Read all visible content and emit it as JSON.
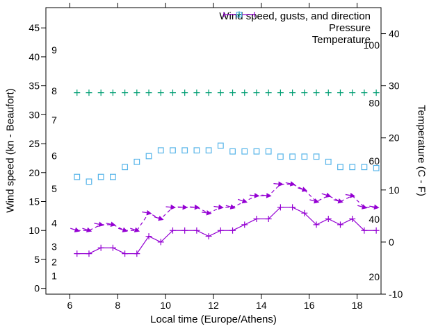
{
  "chart_data": {
    "type": "line",
    "title": "",
    "grid": false,
    "legend_position": "top-right-inside",
    "colors": {
      "wind": "#9400d3",
      "pressure": "#009e73",
      "temperature": "#56b4e9",
      "border": "#000000",
      "background": "#ffffff",
      "text": "#000000"
    },
    "legend": [
      {
        "label": "Wind speed, gusts, and direction",
        "marker": "errorbar-line",
        "color": "#9400d3"
      },
      {
        "label": "Pressure",
        "marker": "plus",
        "color": "#009e73"
      },
      {
        "label": "Temperature",
        "marker": "open-square",
        "color": "#56b4e9"
      }
    ],
    "x": {
      "title": "Local time (Europe/Athens)",
      "range": [
        5,
        19
      ],
      "ticks": [
        6,
        8,
        10,
        12,
        14,
        16,
        18
      ]
    },
    "y1": {
      "title": "Wind speed (kn - Beaufort)",
      "range": [
        -1,
        48.5
      ],
      "ticks": [
        0,
        5,
        10,
        15,
        20,
        25,
        30,
        35,
        40,
        45
      ],
      "inner_labels": {
        "name": "beaufort-scale",
        "values": [
          1,
          2,
          3,
          4,
          5,
          6,
          7,
          8,
          9
        ],
        "positions_kn": [
          2.2,
          4.6,
          7.2,
          11.3,
          17.2,
          22.9,
          29.1,
          34.1,
          41.2
        ]
      }
    },
    "y2": {
      "title": "Temperature (C - F)",
      "range": [
        -10,
        45
      ],
      "ticks": [
        -10,
        0,
        10,
        20,
        30,
        40
      ],
      "inner_labels": {
        "name": "fahrenheit-scale",
        "values": [
          20,
          40,
          60,
          80,
          100
        ],
        "positions_c": [
          -6.7,
          4.4,
          15.6,
          26.7,
          37.8
        ]
      }
    },
    "series": {
      "time_h": [
        6.3,
        6.8,
        7.3,
        7.8,
        8.3,
        8.8,
        9.3,
        9.8,
        10.3,
        10.8,
        11.3,
        11.8,
        12.3,
        12.8,
        13.3,
        13.8,
        14.3,
        14.8,
        15.3,
        15.8,
        16.3,
        16.8,
        17.3,
        17.8,
        18.3,
        18.8
      ],
      "wind_speed_kn": [
        6,
        6,
        7,
        7,
        6,
        6,
        9,
        8,
        10,
        10,
        10,
        9,
        10,
        10,
        11,
        12,
        12,
        14,
        14,
        13,
        11,
        12,
        11,
        12,
        10,
        10
      ],
      "gusts_kn": [
        10,
        10,
        11,
        11,
        10,
        10,
        13,
        12,
        14,
        14,
        14,
        13,
        14,
        14,
        15,
        16,
        16,
        18,
        18,
        17,
        15,
        16,
        15,
        16,
        14,
        14
      ],
      "gust_arrow_tilt_deg": [
        18,
        18,
        12,
        12,
        18,
        18,
        10,
        18,
        5,
        3,
        3,
        8,
        8,
        15,
        18,
        5,
        5,
        5,
        12,
        18,
        15,
        18,
        15,
        10,
        15,
        10
      ],
      "pressure_y1_kn_scale": [
        33.8,
        33.8,
        33.8,
        33.8,
        33.8,
        33.8,
        33.8,
        33.8,
        33.8,
        33.8,
        33.8,
        33.8,
        33.8,
        33.8,
        33.8,
        33.8,
        33.8,
        33.8,
        33.8,
        33.8,
        33.8,
        33.8,
        33.8,
        33.8,
        33.8,
        33.8
      ],
      "temperature_c": [
        12.5,
        11.6,
        12.5,
        12.5,
        14.4,
        15.4,
        16.5,
        17.6,
        17.6,
        17.6,
        17.6,
        17.6,
        18.5,
        17.4,
        17.4,
        17.4,
        17.4,
        16.4,
        16.4,
        16.4,
        16.4,
        15.4,
        14.4,
        14.4,
        14.4,
        14.2
      ]
    }
  }
}
